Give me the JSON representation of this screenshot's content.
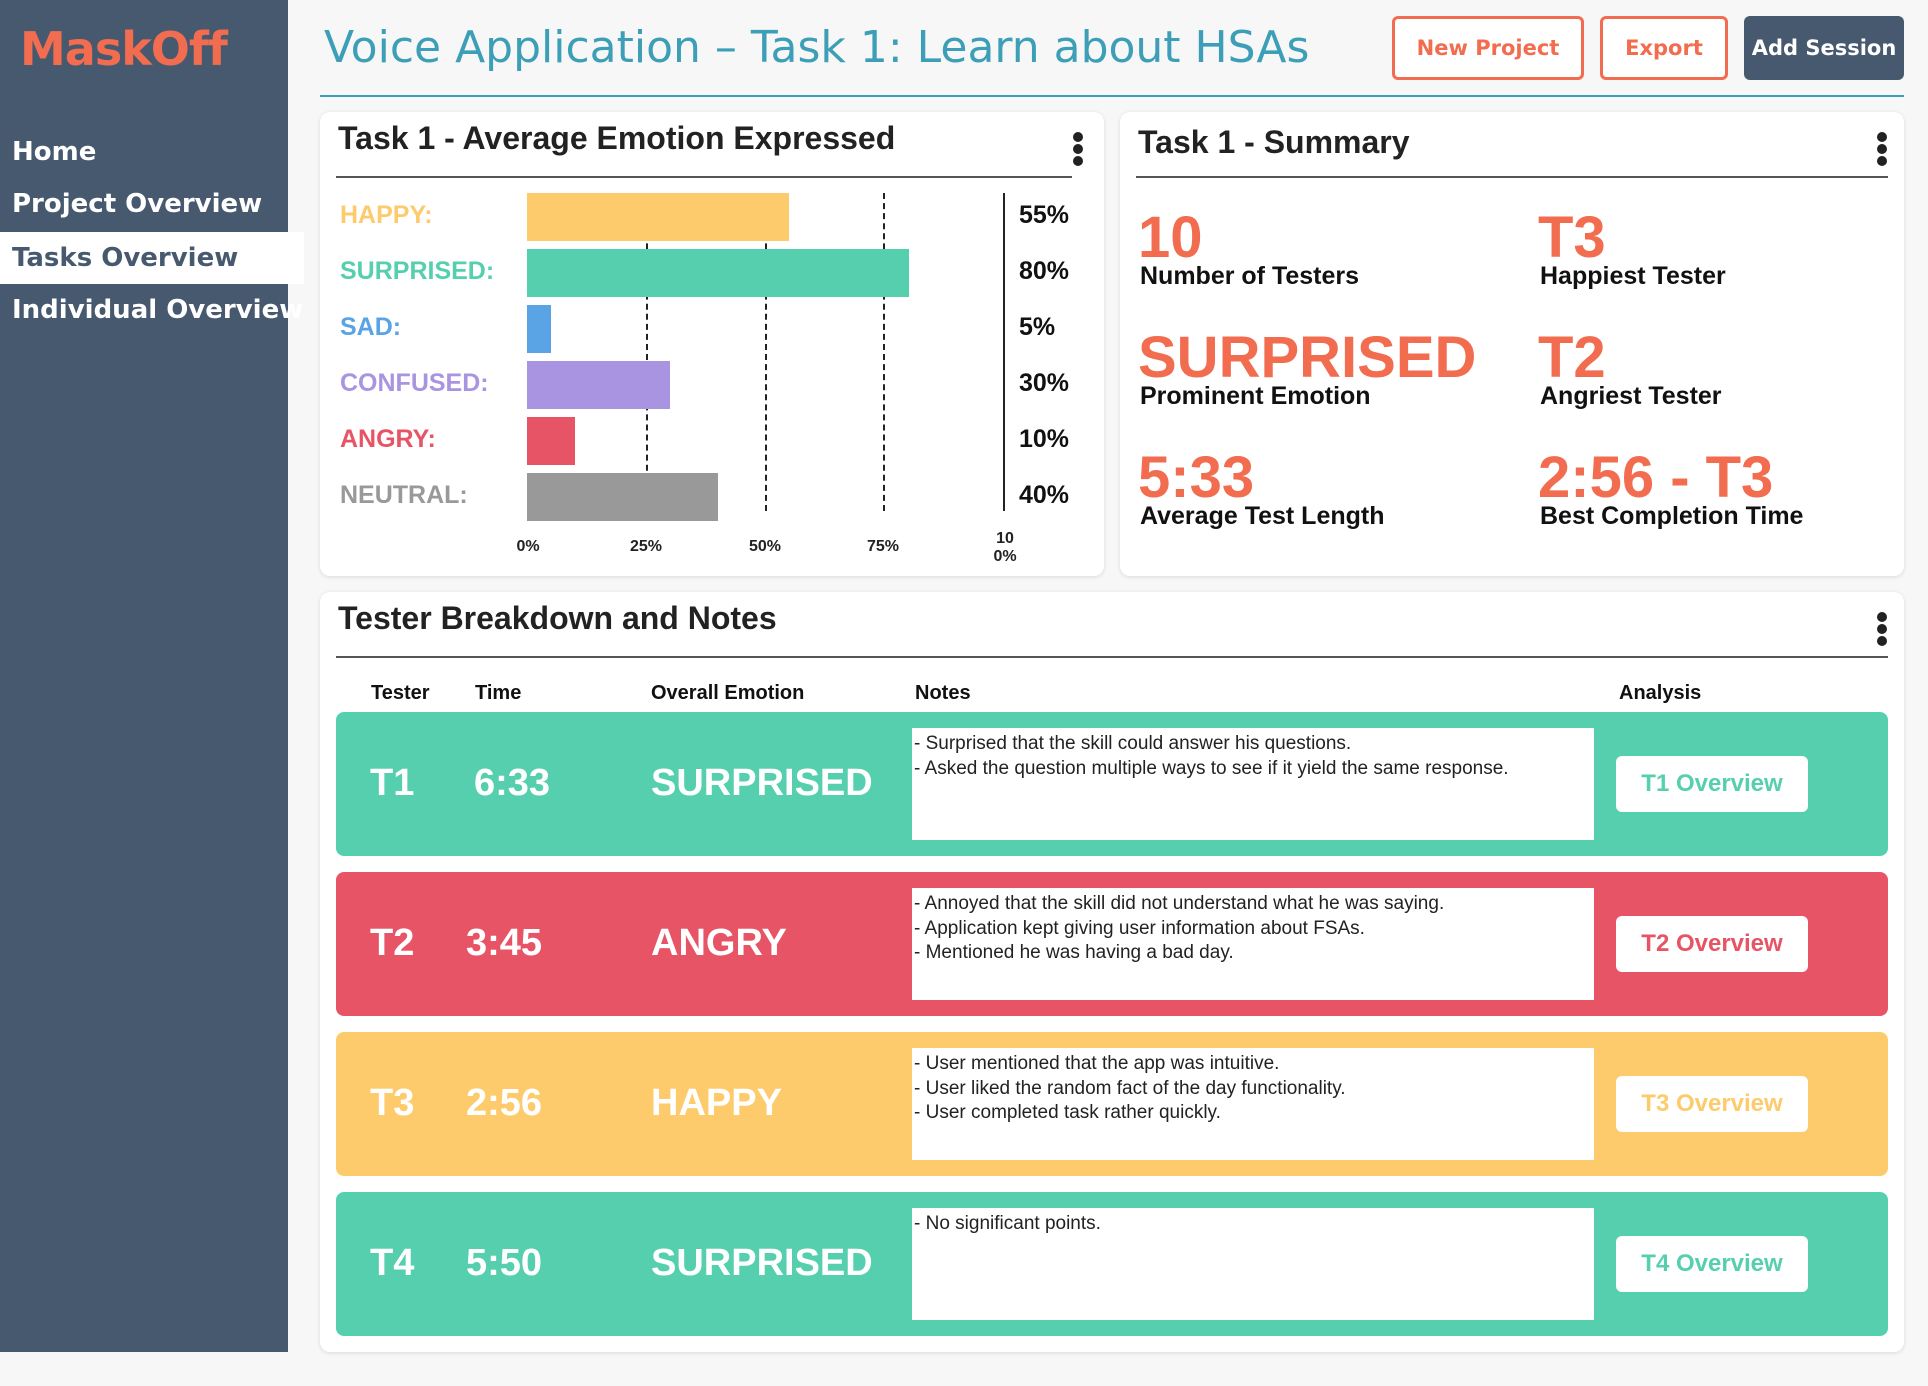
{
  "app": {
    "logo": "MaskOff"
  },
  "sidebar": {
    "items": [
      {
        "label": "Home"
      },
      {
        "label": "Project Overview"
      },
      {
        "label": "Tasks Overview",
        "active": true
      },
      {
        "label": "Individual Overview"
      }
    ]
  },
  "header": {
    "title": "Voice Application – Task 1: Learn about HSAs",
    "buttons": {
      "new_project": "New Project",
      "export": "Export",
      "add_session": "Add Session"
    }
  },
  "colors": {
    "accent": "#f26c4f",
    "sidebar": "#47596f",
    "title": "#3c9fb7",
    "happy": "#fdcb6b",
    "surprised": "#55cfae",
    "sad": "#5aa3e4",
    "confused": "#a994e2",
    "angry": "#e75466",
    "neutral": "#999999"
  },
  "emotion_card": {
    "title": "Task 1 - Average Emotion Expressed"
  },
  "chart_data": {
    "type": "bar",
    "orientation": "horizontal",
    "categories": [
      "HAPPY:",
      "SURPRISED:",
      "SAD:",
      "CONFUSED:",
      "ANGRY:",
      "NEUTRAL:"
    ],
    "values": [
      55,
      80,
      5,
      30,
      10,
      40
    ],
    "value_labels": [
      "55%",
      "80%",
      "5%",
      "30%",
      "10%",
      "40%"
    ],
    "colors": [
      "#fdcb6b",
      "#55cfae",
      "#5aa3e4",
      "#a994e2",
      "#e75466",
      "#999999"
    ],
    "xlim": [
      0,
      100
    ],
    "xticks": [
      "0%",
      "25%",
      "50%",
      "75%",
      "100%"
    ],
    "grid": true
  },
  "summary": {
    "title": "Task 1 - Summary",
    "stats": {
      "testers": {
        "value": "10",
        "label": "Number of Testers"
      },
      "happiest": {
        "value": "T3",
        "label": "Happiest Tester"
      },
      "emotion": {
        "value": "SURPRISED",
        "label": "Prominent Emotion"
      },
      "angriest": {
        "value": "T2",
        "label": "Angriest Tester"
      },
      "avg_length": {
        "value": "5:33",
        "label": "Average Test Length"
      },
      "best_time": {
        "value": "2:56 - T3",
        "label": "Best Completion Time"
      }
    }
  },
  "breakdown": {
    "title": "Tester Breakdown and Notes",
    "columns": {
      "tester": "Tester",
      "time": "Time",
      "emotion": "Overall Emotion",
      "notes": "Notes",
      "analysis": "Analysis"
    },
    "rows": [
      {
        "tester": "T1",
        "time": "6:33",
        "emotion": "SURPRISED",
        "color": "#55cfae",
        "notes": [
          "- Surprised that the skill could answer his questions.",
          "- Asked the question multiple ways to see if it yield the same response."
        ],
        "button": "T1 Overview"
      },
      {
        "tester": "T2",
        "time": "3:45",
        "emotion": "ANGRY",
        "color": "#e75466",
        "notes": [
          "- Annoyed that the skill did not understand what he was saying.",
          "- Application kept giving user information about FSAs.",
          "- Mentioned he was having a bad day."
        ],
        "button": "T2 Overview"
      },
      {
        "tester": "T3",
        "time": "2:56",
        "emotion": "HAPPY",
        "color": "#fdcb6b",
        "notes": [
          "- User mentioned that the app was intuitive.",
          "- User liked the random fact of the day functionality.",
          "- User completed task rather quickly."
        ],
        "button": "T3 Overview"
      },
      {
        "tester": "T4",
        "time": "5:50",
        "emotion": "SURPRISED",
        "color": "#55cfae",
        "notes": [
          "- No significant points."
        ],
        "button": "T4 Overview"
      }
    ]
  }
}
